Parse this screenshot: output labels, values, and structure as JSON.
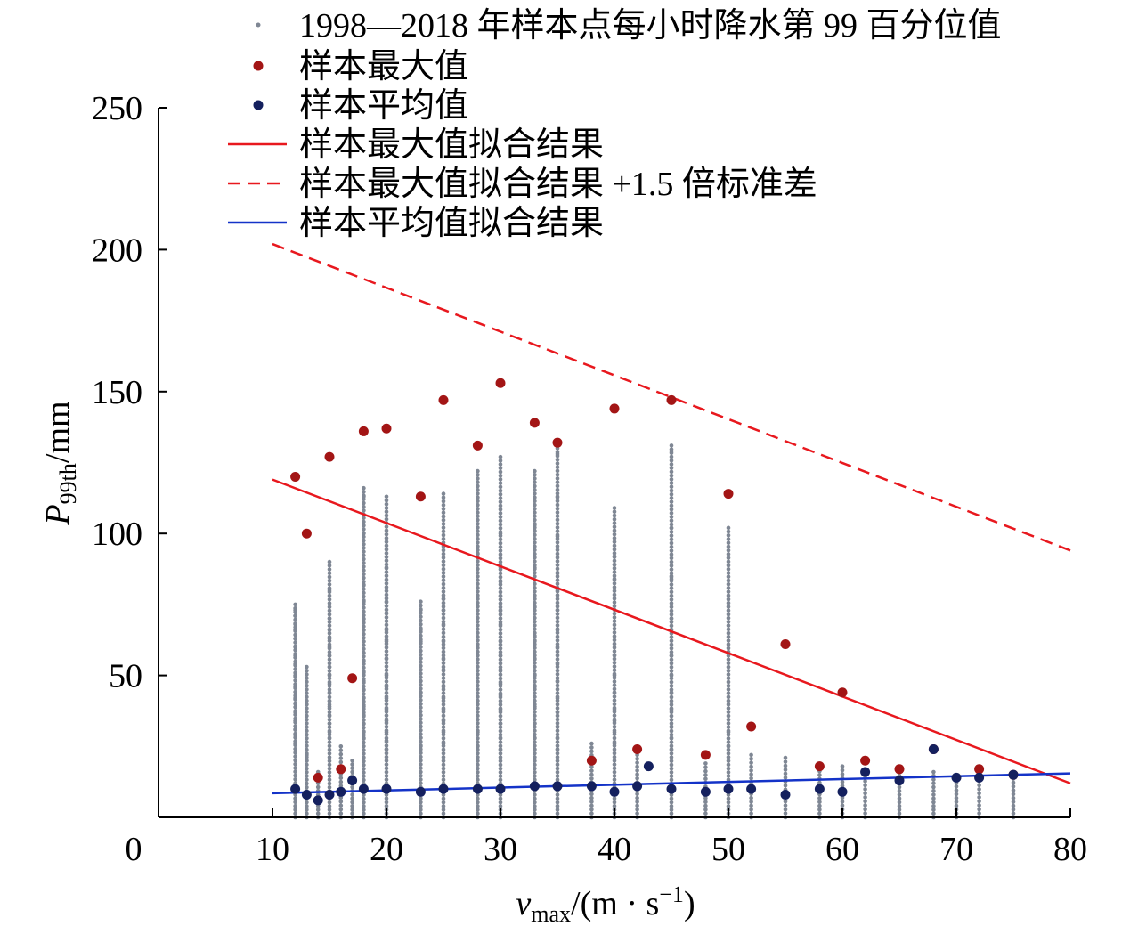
{
  "chart_data": {
    "type": "scatter",
    "xlabel": {
      "main": "v",
      "sub": "max",
      "rest": "/(m · s",
      "sup": "−1",
      "close": ")"
    },
    "ylabel": {
      "main": "P",
      "sub": "99th",
      "rest": "/mm"
    },
    "xlim": [
      0,
      80
    ],
    "ylim": [
      0,
      250
    ],
    "xticks": [
      0,
      10,
      20,
      30,
      40,
      50,
      60,
      70,
      80
    ],
    "yticks": [
      50,
      100,
      150,
      200,
      250
    ],
    "legend": {
      "position": "top-right",
      "entries": [
        {
          "label": "1998—2018 年样本点每小时降水第 99 百分位值",
          "kind": "small-dot",
          "color": "#7f8794"
        },
        {
          "label": "样本最大值",
          "kind": "dot",
          "color": "#a31515"
        },
        {
          "label": "样本平均值",
          "kind": "dot",
          "color": "#14205e"
        },
        {
          "label": "样本最大值拟合结果",
          "kind": "line",
          "color": "#e8181e"
        },
        {
          "label": "样本最大值拟合结果 +1.5 倍标准差",
          "kind": "dashed",
          "color": "#e8181e"
        },
        {
          "label": "样本平均值拟合结果",
          "kind": "line",
          "color": "#1433c8"
        }
      ]
    },
    "colors": {
      "samples": "#7f8794",
      "maximum": "#a31515",
      "mean": "#14205e",
      "max_fit": "#e8181e",
      "mean_fit": "#1433c8"
    },
    "sample_columns": [
      {
        "x": 12,
        "max": 75,
        "outliers": [
          73,
          71,
          68,
          66,
          63,
          60,
          57,
          54,
          50,
          46,
          42,
          40,
          37,
          34,
          31,
          29,
          26
        ]
      },
      {
        "x": 13,
        "max": 53,
        "outliers": [
          22,
          20
        ]
      },
      {
        "x": 14,
        "max": 16,
        "outliers": []
      },
      {
        "x": 15,
        "max": 90,
        "outliers": [
          80,
          70,
          66,
          63,
          60,
          57,
          53,
          50,
          47,
          44,
          41,
          39,
          36,
          33,
          30,
          28
        ]
      },
      {
        "x": 16,
        "max": 25,
        "outliers": []
      },
      {
        "x": 17,
        "max": 20,
        "outliers": []
      },
      {
        "x": 18,
        "max": 116,
        "outliers": [
          113,
          100,
          82,
          76,
          70,
          66,
          62,
          58,
          55,
          51,
          48,
          45,
          42,
          39,
          36,
          33,
          30,
          28
        ]
      },
      {
        "x": 20,
        "max": 113,
        "outliers": [
          88,
          76,
          72,
          66,
          62,
          56,
          50,
          46,
          42,
          38,
          34,
          30,
          27,
          24
        ]
      },
      {
        "x": 23,
        "max": 76,
        "outliers": [
          73,
          66,
          62,
          56,
          52,
          48,
          44,
          40,
          36,
          32,
          28,
          25
        ]
      },
      {
        "x": 25,
        "max": 114,
        "outliers": [
          106,
          96,
          77,
          73,
          68,
          62,
          56,
          52,
          46,
          42,
          38,
          34,
          30,
          26
        ]
      },
      {
        "x": 28,
        "max": 122,
        "outliers": [
          93,
          30,
          25
        ]
      },
      {
        "x": 30,
        "max": 127,
        "outliers": [
          100,
          88,
          83,
          78,
          73,
          68,
          62,
          57,
          52,
          47,
          43,
          38,
          33,
          28,
          24
        ]
      },
      {
        "x": 33,
        "max": 122,
        "outliers": [
          103,
          101,
          88,
          74,
          64,
          62,
          56,
          50,
          46,
          39,
          33,
          28,
          24
        ]
      },
      {
        "x": 35,
        "max": 130,
        "outliers": [
          128,
          113,
          99,
          86,
          80,
          73,
          66,
          60,
          54,
          48,
          42,
          37,
          32,
          28,
          24
        ]
      },
      {
        "x": 38,
        "max": 26,
        "outliers": []
      },
      {
        "x": 40,
        "max": 109,
        "outliers": [
          92,
          89,
          84,
          57,
          50,
          44,
          38,
          34,
          30,
          26
        ]
      },
      {
        "x": 42,
        "max": 22,
        "outliers": []
      },
      {
        "x": 45,
        "max": 131,
        "outliers": [
          129,
          102,
          85,
          84,
          70,
          57,
          50,
          44,
          38,
          32,
          28,
          24
        ]
      },
      {
        "x": 48,
        "max": 19,
        "outliers": []
      },
      {
        "x": 50,
        "max": 102,
        "outliers": [
          30,
          25
        ]
      },
      {
        "x": 52,
        "max": 22,
        "outliers": []
      },
      {
        "x": 55,
        "max": 21,
        "outliers": []
      },
      {
        "x": 58,
        "max": 19,
        "outliers": []
      },
      {
        "x": 60,
        "max": 18,
        "outliers": []
      },
      {
        "x": 62,
        "max": 17,
        "outliers": []
      },
      {
        "x": 65,
        "max": 16,
        "outliers": []
      },
      {
        "x": 68,
        "max": 16,
        "outliers": []
      },
      {
        "x": 70,
        "max": 15,
        "outliers": []
      },
      {
        "x": 72,
        "max": 17,
        "outliers": []
      },
      {
        "x": 75,
        "max": 15,
        "outliers": []
      }
    ],
    "sample_max": [
      [
        12,
        120
      ],
      [
        13,
        100
      ],
      [
        14,
        14
      ],
      [
        15,
        127
      ],
      [
        16,
        17
      ],
      [
        17,
        49
      ],
      [
        18,
        136
      ],
      [
        20,
        137
      ],
      [
        23,
        113
      ],
      [
        25,
        147
      ],
      [
        28,
        131
      ],
      [
        30,
        153
      ],
      [
        33,
        139
      ],
      [
        35,
        132
      ],
      [
        38,
        20
      ],
      [
        40,
        144
      ],
      [
        42,
        24
      ],
      [
        45,
        147
      ],
      [
        48,
        22
      ],
      [
        50,
        114
      ],
      [
        52,
        32
      ],
      [
        55,
        61
      ],
      [
        58,
        18
      ],
      [
        60,
        44
      ],
      [
        62,
        20
      ],
      [
        65,
        17
      ],
      [
        68,
        24
      ],
      [
        72,
        17
      ],
      [
        75,
        15
      ]
    ],
    "sample_mean": [
      [
        12,
        10
      ],
      [
        13,
        8
      ],
      [
        14,
        6
      ],
      [
        15,
        8
      ],
      [
        16,
        9
      ],
      [
        17,
        13
      ],
      [
        18,
        10
      ],
      [
        20,
        10
      ],
      [
        23,
        9
      ],
      [
        25,
        10
      ],
      [
        28,
        10
      ],
      [
        30,
        10
      ],
      [
        33,
        11
      ],
      [
        35,
        11
      ],
      [
        38,
        11
      ],
      [
        40,
        9
      ],
      [
        42,
        11
      ],
      [
        43,
        18
      ],
      [
        45,
        10
      ],
      [
        48,
        9
      ],
      [
        50,
        10
      ],
      [
        52,
        10
      ],
      [
        55,
        8
      ],
      [
        58,
        10
      ],
      [
        60,
        9
      ],
      [
        62,
        16
      ],
      [
        65,
        13
      ],
      [
        68,
        24
      ],
      [
        70,
        14
      ],
      [
        72,
        14
      ],
      [
        75,
        15
      ]
    ],
    "fit_max": {
      "x": [
        10,
        80
      ],
      "y": [
        119,
        12
      ]
    },
    "fit_max_plus": {
      "x": [
        10,
        80
      ],
      "y": [
        202,
        94
      ]
    },
    "fit_mean": {
      "x": [
        10,
        80
      ],
      "y": [
        8.5,
        15.5
      ]
    }
  }
}
